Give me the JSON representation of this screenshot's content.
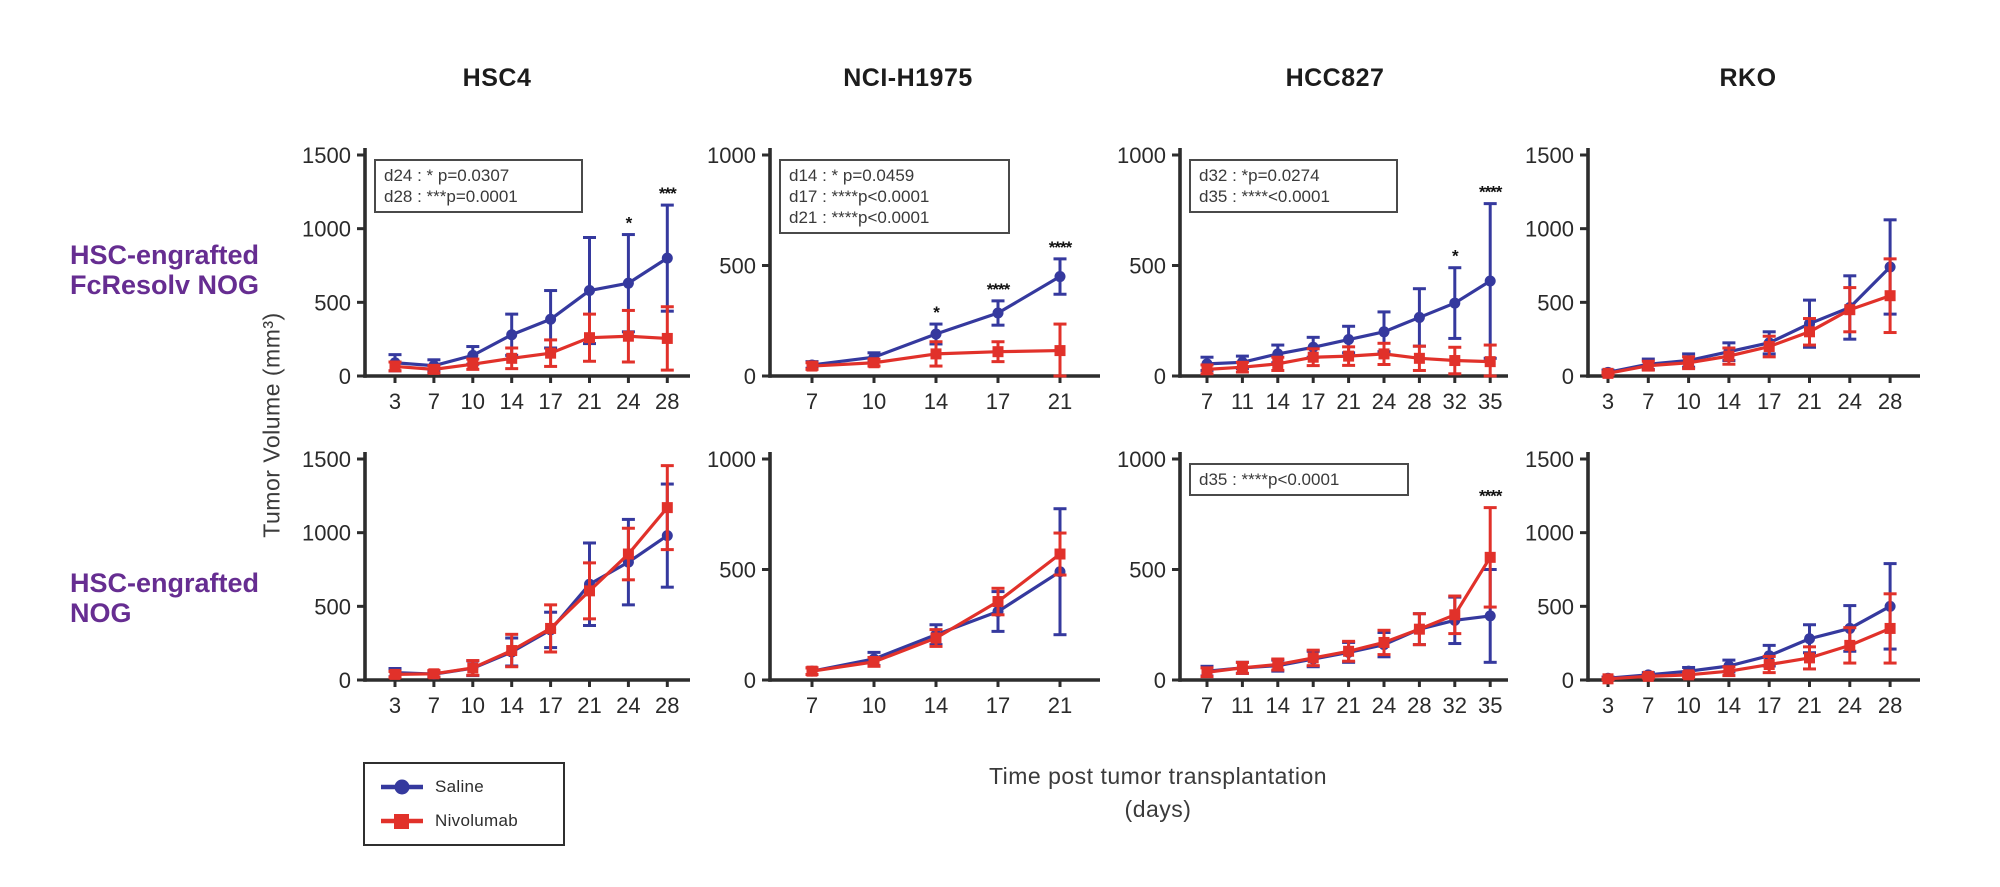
{
  "figure_background": "#ffffff",
  "colors": {
    "saline_blue": "#35399e",
    "nivolumab_red": "#e1312a",
    "row_label_purple": "#662d91",
    "axis_black": "#2d2d2d",
    "annotation_border": "#4a4a4a",
    "annotation_text": "#3a3a3a",
    "sig_star_black": "#111111"
  },
  "column_titles": [
    "HSC4",
    "NCI-H1975",
    "HCC827",
    "RKO"
  ],
  "rows": [
    {
      "line1": "HSC-engrafted",
      "line2": "FcResolv NOG"
    },
    {
      "line1": "HSC-engrafted",
      "line2": "NOG"
    }
  ],
  "y_axis_label": "Tumor Volume (mm³)",
  "x_axis_label_line1": "Time post tumor transplantation",
  "x_axis_label_line2": "(days)",
  "legend": {
    "items": [
      {
        "label": "Saline",
        "marker": "circle",
        "color_key": "saline_blue"
      },
      {
        "label": "Nivolumab",
        "marker": "square",
        "color_key": "nivolumab_red"
      }
    ]
  },
  "chart_data": [
    {
      "type": "line",
      "cell_line": "HSC4",
      "model": "HSC-engrafted FcResolv NOG",
      "row": 0,
      "col": 0,
      "x": [
        3,
        7,
        10,
        14,
        17,
        21,
        24,
        28
      ],
      "ylim": [
        0,
        1500
      ],
      "yticks": [
        0,
        500,
        1000,
        1500
      ],
      "series": [
        {
          "name": "Saline",
          "color_key": "saline_blue",
          "marker": "circle",
          "values": [
            90,
            70,
            140,
            280,
            385,
            580,
            630,
            800
          ],
          "errors": [
            55,
            40,
            60,
            140,
            195,
            360,
            330,
            360
          ]
        },
        {
          "name": "Nivolumab",
          "color_key": "nivolumab_red",
          "marker": "square",
          "values": [
            65,
            45,
            80,
            120,
            155,
            260,
            270,
            255
          ],
          "errors": [
            30,
            25,
            35,
            70,
            90,
            160,
            175,
            215
          ]
        }
      ],
      "annotations": [
        "d24 : * p=0.0307",
        "d28 : ***p=0.0001"
      ],
      "significance": [
        {
          "day": 24,
          "label": "*"
        },
        {
          "day": 28,
          "label": "***"
        }
      ]
    },
    {
      "type": "line",
      "cell_line": "NCI-H1975",
      "model": "HSC-engrafted FcResolv NOG",
      "row": 0,
      "col": 1,
      "x": [
        7,
        10,
        14,
        17,
        21
      ],
      "ylim": [
        0,
        1000
      ],
      "yticks": [
        0,
        500,
        1000
      ],
      "series": [
        {
          "name": "Saline",
          "color_key": "saline_blue",
          "marker": "circle",
          "values": [
            50,
            85,
            190,
            285,
            450
          ],
          "errors": [
            15,
            20,
            45,
            55,
            80
          ]
        },
        {
          "name": "Nivolumab",
          "color_key": "nivolumab_red",
          "marker": "square",
          "values": [
            45,
            60,
            100,
            110,
            115
          ],
          "errors": [
            15,
            15,
            55,
            45,
            120
          ]
        }
      ],
      "annotations": [
        "d14 : * p=0.0459",
        "d17 :  ****p<0.0001",
        "d21 :  ****p<0.0001"
      ],
      "significance": [
        {
          "day": 14,
          "label": "*"
        },
        {
          "day": 17,
          "label": "****"
        },
        {
          "day": 21,
          "label": "****"
        }
      ]
    },
    {
      "type": "line",
      "cell_line": "HCC827",
      "model": "HSC-engrafted FcResolv NOG",
      "row": 0,
      "col": 2,
      "x": [
        7,
        11,
        14,
        17,
        21,
        24,
        28,
        32,
        35
      ],
      "ylim": [
        0,
        1000
      ],
      "yticks": [
        0,
        500,
        1000
      ],
      "series": [
        {
          "name": "Saline",
          "color_key": "saline_blue",
          "marker": "circle",
          "values": [
            55,
            62,
            100,
            130,
            165,
            200,
            265,
            330,
            430
          ],
          "errors": [
            30,
            28,
            40,
            45,
            60,
            90,
            130,
            160,
            350
          ]
        },
        {
          "name": "Nivolumab",
          "color_key": "nivolumab_red",
          "marker": "square",
          "values": [
            30,
            40,
            55,
            85,
            90,
            100,
            80,
            70,
            65
          ],
          "errors": [
            20,
            22,
            30,
            38,
            42,
            48,
            55,
            60,
            75
          ]
        }
      ],
      "annotations": [
        "d32 : *p=0.0274",
        "d35 : ****<0.0001"
      ],
      "significance": [
        {
          "day": 32,
          "label": "*"
        },
        {
          "day": 35,
          "label": "****"
        }
      ]
    },
    {
      "type": "line",
      "cell_line": "RKO",
      "model": "HSC-engrafted FcResolv NOG",
      "row": 0,
      "col": 3,
      "x": [
        3,
        7,
        10,
        14,
        17,
        21,
        24,
        28
      ],
      "ylim": [
        0,
        1500
      ],
      "yticks": [
        0,
        500,
        1000,
        1500
      ],
      "series": [
        {
          "name": "Saline",
          "color_key": "saline_blue",
          "marker": "circle",
          "values": [
            25,
            80,
            105,
            165,
            225,
            355,
            465,
            740
          ],
          "errors": [
            15,
            35,
            45,
            60,
            75,
            160,
            215,
            320
          ]
        },
        {
          "name": "Nivolumab",
          "color_key": "nivolumab_red",
          "marker": "square",
          "values": [
            18,
            70,
            90,
            135,
            200,
            300,
            450,
            545
          ],
          "errors": [
            10,
            30,
            40,
            55,
            70,
            90,
            150,
            250
          ]
        }
      ],
      "annotations": [],
      "significance": []
    },
    {
      "type": "line",
      "cell_line": "HSC4",
      "model": "HSC-engrafted NOG",
      "row": 1,
      "col": 0,
      "x": [
        3,
        7,
        10,
        14,
        17,
        21,
        24,
        28
      ],
      "ylim": [
        0,
        1500
      ],
      "yticks": [
        0,
        500,
        1000,
        1500
      ],
      "series": [
        {
          "name": "Saline",
          "color_key": "saline_blue",
          "marker": "circle",
          "values": [
            50,
            40,
            80,
            190,
            340,
            650,
            800,
            980
          ],
          "errors": [
            28,
            20,
            50,
            95,
            120,
            280,
            290,
            350
          ]
        },
        {
          "name": "Nivolumab",
          "color_key": "nivolumab_red",
          "marker": "square",
          "values": [
            38,
            42,
            82,
            200,
            350,
            605,
            855,
            1170
          ],
          "errors": [
            20,
            22,
            50,
            110,
            160,
            190,
            175,
            285
          ]
        }
      ],
      "annotations": [],
      "significance": []
    },
    {
      "type": "line",
      "cell_line": "NCI-H1975",
      "model": "HSC-engrafted NOG",
      "row": 1,
      "col": 1,
      "x": [
        7,
        10,
        14,
        17,
        21
      ],
      "ylim": [
        0,
        1000
      ],
      "yticks": [
        0,
        500,
        1000
      ],
      "series": [
        {
          "name": "Saline",
          "color_key": "saline_blue",
          "marker": "circle",
          "values": [
            40,
            95,
            205,
            310,
            490
          ],
          "errors": [
            15,
            30,
            45,
            90,
            285
          ]
        },
        {
          "name": "Nivolumab",
          "color_key": "nivolumab_red",
          "marker": "square",
          "values": [
            40,
            82,
            190,
            355,
            570
          ],
          "errors": [
            15,
            20,
            38,
            60,
            95
          ]
        }
      ],
      "annotations": [],
      "significance": []
    },
    {
      "type": "line",
      "cell_line": "HCC827",
      "model": "HSC-engrafted NOG",
      "row": 1,
      "col": 2,
      "x": [
        7,
        11,
        14,
        17,
        21,
        24,
        28,
        32,
        35
      ],
      "ylim": [
        0,
        1000
      ],
      "yticks": [
        0,
        500,
        1000
      ],
      "series": [
        {
          "name": "Saline",
          "color_key": "saline_blue",
          "marker": "circle",
          "values": [
            40,
            55,
            65,
            95,
            125,
            160,
            230,
            270,
            290
          ],
          "errors": [
            22,
            25,
            25,
            35,
            45,
            55,
            70,
            105,
            210
          ]
        },
        {
          "name": "Nivolumab",
          "color_key": "nivolumab_red",
          "marker": "square",
          "values": [
            35,
            55,
            70,
            100,
            130,
            170,
            230,
            295,
            555
          ],
          "errors": [
            20,
            25,
            25,
            35,
            45,
            55,
            70,
            85,
            225
          ]
        }
      ],
      "annotations": [
        "d35 : ****p<0.0001"
      ],
      "significance": [
        {
          "day": 35,
          "label": "****"
        }
      ]
    },
    {
      "type": "line",
      "cell_line": "RKO",
      "model": "HSC-engrafted NOG",
      "row": 1,
      "col": 3,
      "x": [
        3,
        7,
        10,
        14,
        17,
        21,
        24,
        28
      ],
      "ylim": [
        0,
        1500
      ],
      "yticks": [
        0,
        500,
        1000,
        1500
      ],
      "series": [
        {
          "name": "Saline",
          "color_key": "saline_blue",
          "marker": "circle",
          "values": [
            12,
            35,
            60,
            95,
            165,
            280,
            350,
            500
          ],
          "errors": [
            8,
            15,
            25,
            40,
            70,
            95,
            155,
            290
          ]
        },
        {
          "name": "Nivolumab",
          "color_key": "nivolumab_red",
          "marker": "square",
          "values": [
            8,
            25,
            35,
            60,
            105,
            150,
            235,
            350
          ],
          "errors": [
            5,
            12,
            18,
            30,
            55,
            75,
            120,
            235
          ]
        }
      ],
      "annotations": [],
      "significance": []
    }
  ]
}
